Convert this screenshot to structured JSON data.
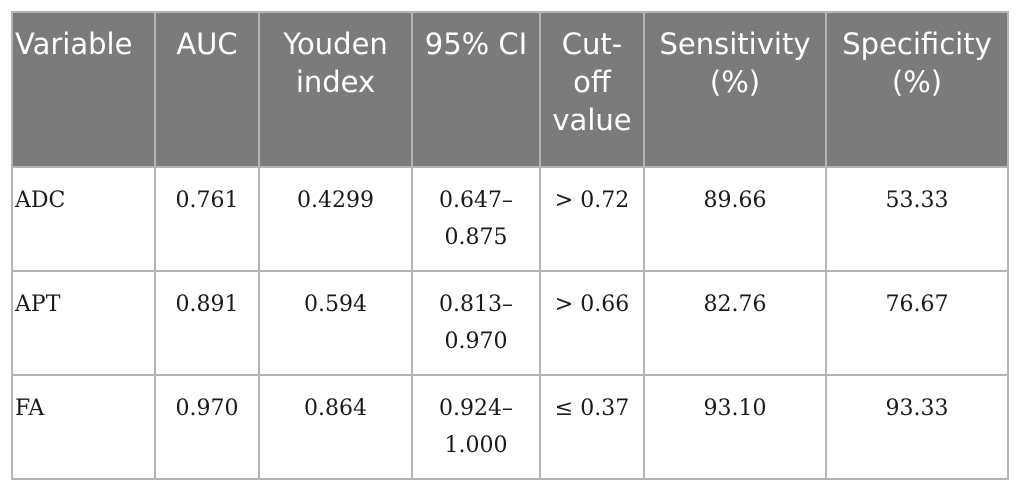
{
  "table": {
    "headers": [
      "Variable",
      "AUC",
      "Youden index",
      "95% CI",
      "Cut-off value",
      "Sensitivity (%)",
      "Specificity (%)"
    ],
    "rows": [
      {
        "variable": "ADC",
        "auc": "0.761",
        "youden": "0.4299",
        "ci_low": "0.647–",
        "ci_high": "0.875",
        "cutoff": "> 0.72",
        "sensitivity": "89.66",
        "specificity": "53.33"
      },
      {
        "variable": "APT",
        "auc": "0.891",
        "youden": "0.594",
        "ci_low": "0.813–",
        "ci_high": "0.970",
        "cutoff": "> 0.66",
        "sensitivity": "82.76",
        "specificity": "76.67"
      },
      {
        "variable": "FA",
        "auc": "0.970",
        "youden": "0.864",
        "ci_low": "0.924–",
        "ci_high": "1.000",
        "cutoff": "≤ 0.37",
        "sensitivity": "93.10",
        "specificity": "93.33"
      }
    ]
  }
}
